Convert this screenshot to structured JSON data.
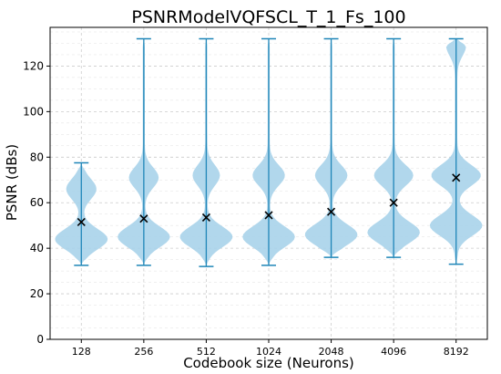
{
  "chart_data": {
    "type": "violin",
    "title": "PSNRModelVQFSCL_T_1_Fs_100",
    "xlabel": "Codebook size (Neurons)",
    "ylabel": "PSNR (dBs)",
    "ylim": [
      0,
      137
    ],
    "yticks": [
      0,
      20,
      40,
      60,
      80,
      100,
      120
    ],
    "grid": true,
    "categories": [
      "128",
      "256",
      "512",
      "1024",
      "2048",
      "4096",
      "8192"
    ],
    "violins": [
      {
        "category": "128",
        "min": 32.5,
        "max": 77.5,
        "mean": 51.5,
        "modes": [
          [
            44,
            0.9
          ],
          [
            66,
            0.5
          ]
        ]
      },
      {
        "category": "256",
        "min": 32.5,
        "max": 132.0,
        "mean": 53.0,
        "modes": [
          [
            45,
            1.0
          ],
          [
            71,
            0.55
          ]
        ]
      },
      {
        "category": "512",
        "min": 32.0,
        "max": 132.0,
        "mean": 53.5,
        "modes": [
          [
            45,
            1.0
          ],
          [
            72,
            0.5
          ]
        ]
      },
      {
        "category": "1024",
        "min": 32.5,
        "max": 132.0,
        "mean": 54.5,
        "modes": [
          [
            45,
            1.0
          ],
          [
            72,
            0.6
          ]
        ]
      },
      {
        "category": "2048",
        "min": 36.0,
        "max": 132.0,
        "mean": 56.0,
        "modes": [
          [
            46,
            1.0
          ],
          [
            72,
            0.6
          ]
        ]
      },
      {
        "category": "4096",
        "min": 36.0,
        "max": 132.0,
        "mean": 60.0,
        "modes": [
          [
            47,
            0.95
          ],
          [
            72,
            0.7
          ]
        ]
      },
      {
        "category": "8192",
        "min": 33.0,
        "max": 132.0,
        "mean": 71.0,
        "modes": [
          [
            50,
            0.85
          ],
          [
            72,
            0.8
          ],
          [
            129,
            0.3
          ]
        ]
      }
    ],
    "colors": {
      "fill": "#a9d3ea",
      "line": "#1f86b8",
      "mean_marker": "#000000",
      "grid": "#cccccc"
    }
  }
}
